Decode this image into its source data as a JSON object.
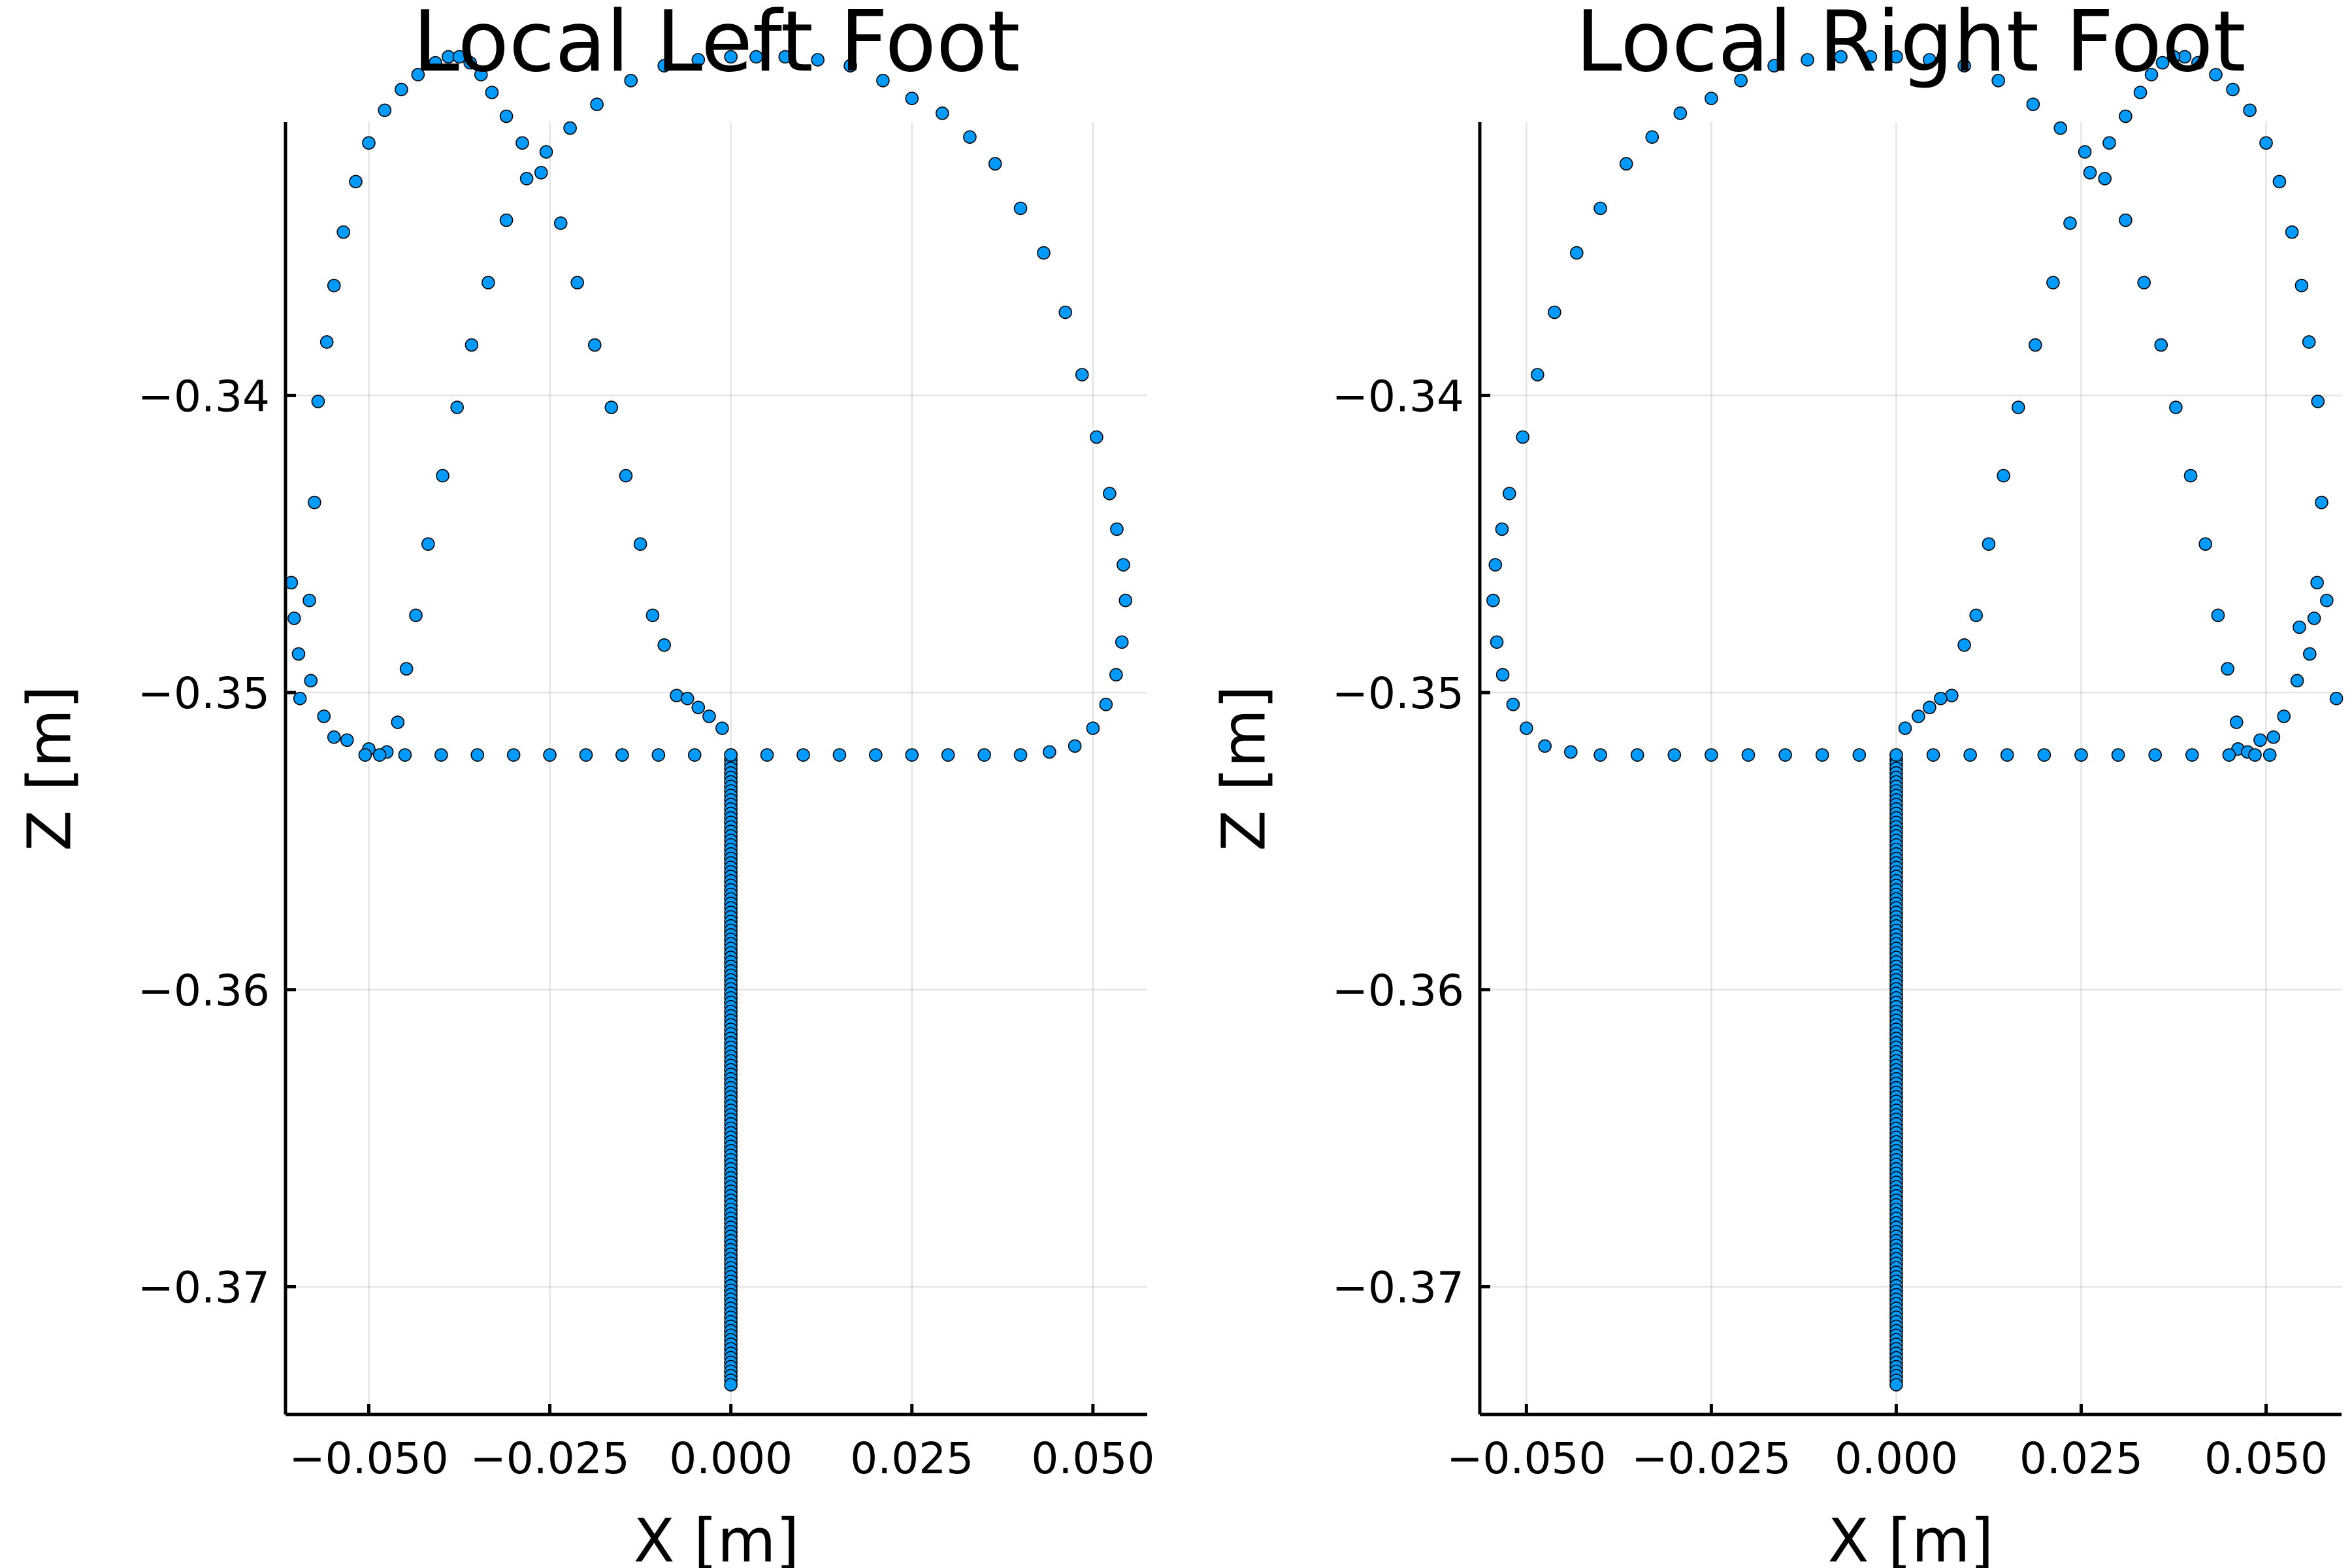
{
  "chart_data": [
    {
      "type": "scatter",
      "title": "Local Left Foot",
      "xlabel": "X [m]",
      "ylabel": "Z [m]",
      "xlim": [
        -0.0615,
        0.0575
      ],
      "ylim": [
        -0.3743,
        -0.3308
      ],
      "xticks": [
        -0.05,
        -0.025,
        0.0,
        0.025,
        0.05
      ],
      "xtick_labels": [
        "−0.050",
        "−0.025",
        "0.000",
        "0.025",
        "0.050"
      ],
      "yticks": [
        -0.34,
        -0.35,
        -0.36,
        -0.37
      ],
      "ytick_labels": [
        "−0.34",
        "−0.35",
        "−0.36",
        "−0.37"
      ],
      "grid": true,
      "legend": "none",
      "marker_color": "#009AFA",
      "series": [
        {
          "values": [
            [
              -0.0595,
              -0.3502
            ],
            [
              -0.0582,
              -0.3469
            ],
            [
              -0.0575,
              -0.3436
            ],
            [
              -0.057,
              -0.3402
            ],
            [
              -0.0558,
              -0.3382
            ],
            [
              -0.0548,
              -0.3363
            ],
            [
              -0.0535,
              -0.3345
            ],
            [
              -0.0518,
              -0.3328
            ],
            [
              -0.05,
              -0.3315
            ],
            [
              -0.0478,
              -0.3304
            ],
            [
              -0.0455,
              -0.3297
            ],
            [
              -0.0432,
              -0.3292
            ],
            [
              -0.0408,
              -0.3288
            ],
            [
              -0.039,
              -0.3286
            ],
            [
              -0.0375,
              -0.3286
            ],
            [
              -0.036,
              -0.3288
            ],
            [
              -0.0345,
              -0.3292
            ],
            [
              -0.033,
              -0.3298
            ],
            [
              -0.031,
              -0.3306
            ],
            [
              -0.0288,
              -0.3315
            ],
            [
              -0.0262,
              -0.3325
            ],
            [
              -0.0235,
              -0.3342
            ],
            [
              -0.0212,
              -0.3362
            ],
            [
              -0.0188,
              -0.3383
            ],
            [
              -0.0165,
              -0.3404
            ],
            [
              -0.0145,
              -0.3427
            ],
            [
              -0.0125,
              -0.345
            ],
            [
              -0.0108,
              -0.3474
            ],
            [
              -0.0092,
              -0.3484
            ],
            [
              -0.0075,
              -0.3501
            ],
            [
              -0.006,
              -0.3502
            ],
            [
              -0.0045,
              -0.3505
            ],
            [
              -0.003,
              -0.3508
            ],
            [
              -0.0012,
              -0.3512
            ],
            [
              0.0,
              -0.3521
            ],
            [
              -0.0607,
              -0.3463
            ],
            [
              -0.0603,
              -0.3475
            ],
            [
              -0.0597,
              -0.3487
            ],
            [
              -0.058,
              -0.3496
            ],
            [
              -0.0562,
              -0.3508
            ],
            [
              -0.0548,
              -0.3515
            ],
            [
              -0.053,
              -0.3516
            ],
            [
              -0.05,
              -0.3519
            ],
            [
              -0.045,
              -0.3521
            ],
            [
              -0.04,
              -0.3521
            ],
            [
              -0.035,
              -0.3521
            ],
            [
              -0.03,
              -0.3521
            ],
            [
              -0.025,
              -0.3521
            ],
            [
              -0.02,
              -0.3521
            ],
            [
              -0.015,
              -0.3521
            ],
            [
              -0.01,
              -0.3521
            ],
            [
              -0.005,
              -0.3521
            ],
            [
              0.0,
              -0.3521
            ],
            [
              0.005,
              -0.3521
            ],
            [
              0.01,
              -0.3521
            ],
            [
              0.015,
              -0.3521
            ],
            [
              0.02,
              -0.3521
            ],
            [
              0.025,
              -0.3521
            ],
            [
              0.03,
              -0.3521
            ],
            [
              0.035,
              -0.3521
            ],
            [
              0.04,
              -0.3521
            ],
            [
              0.044,
              -0.352
            ],
            [
              0.0475,
              -0.3518
            ],
            [
              0.05,
              -0.3512
            ],
            [
              0.0518,
              -0.3504
            ],
            [
              0.0532,
              -0.3494
            ],
            [
              0.054,
              -0.3483
            ],
            [
              0.0545,
              -0.3469
            ],
            [
              0.0542,
              -0.3457
            ],
            [
              0.0533,
              -0.3445
            ],
            [
              0.0523,
              -0.3433
            ],
            [
              0.0505,
              -0.3414
            ],
            [
              0.0485,
              -0.3393
            ],
            [
              0.0462,
              -0.3372
            ],
            [
              0.0432,
              -0.3352
            ],
            [
              0.04,
              -0.3337
            ],
            [
              0.0365,
              -0.3322
            ],
            [
              0.033,
              -0.3313
            ],
            [
              0.0292,
              -0.3305
            ],
            [
              0.025,
              -0.33
            ],
            [
              0.021,
              -0.3294
            ],
            [
              0.0165,
              -0.3289
            ],
            [
              0.012,
              -0.3287
            ],
            [
              0.0075,
              -0.3286
            ],
            [
              0.0035,
              -0.3286
            ],
            [
              0.0,
              -0.3286
            ],
            [
              -0.0045,
              -0.3287
            ],
            [
              -0.0092,
              -0.3289
            ],
            [
              -0.0138,
              -0.3294
            ],
            [
              -0.0185,
              -0.3302
            ],
            [
              -0.0222,
              -0.331
            ],
            [
              -0.0255,
              -0.3318
            ],
            [
              -0.0282,
              -0.3327
            ],
            [
              -0.031,
              -0.3341
            ],
            [
              -0.0335,
              -0.3362
            ],
            [
              -0.0358,
              -0.3383
            ],
            [
              -0.0378,
              -0.3404
            ],
            [
              -0.0398,
              -0.3427
            ],
            [
              -0.0418,
              -0.345
            ],
            [
              -0.0435,
              -0.3474
            ],
            [
              -0.0448,
              -0.3492
            ],
            [
              -0.046,
              -0.351
            ],
            [
              -0.0475,
              -0.352
            ],
            [
              -0.0485,
              -0.3521
            ],
            [
              -0.0505,
              -0.3521
            ]
          ],
          "vertical_segment": {
            "x": 0.0,
            "y_top": -0.3521,
            "y_bottom": -0.3733
          }
        }
      ]
    },
    {
      "type": "scatter",
      "title": "Local Right Foot",
      "xlabel": "X [m]",
      "ylabel": "Z [m]",
      "xlim": [
        -0.0563,
        0.0602
      ],
      "ylim": [
        -0.3743,
        -0.3308
      ],
      "xticks": [
        -0.05,
        -0.025,
        0.0,
        0.025,
        0.05
      ],
      "xtick_labels": [
        "−0.050",
        "−0.025",
        "0.000",
        "0.025",
        "0.050"
      ],
      "yticks": [
        -0.34,
        -0.35,
        -0.36,
        -0.37
      ],
      "ytick_labels": [
        "−0.34",
        "−0.35",
        "−0.36",
        "−0.37"
      ],
      "grid": true,
      "legend": "none",
      "marker_color": "#009AFA",
      "series": [
        {
          "values": [
            [
              0.0595,
              -0.3502
            ],
            [
              0.0582,
              -0.3469
            ],
            [
              0.0575,
              -0.3436
            ],
            [
              0.057,
              -0.3402
            ],
            [
              0.0558,
              -0.3382
            ],
            [
              0.0548,
              -0.3363
            ],
            [
              0.0535,
              -0.3345
            ],
            [
              0.0518,
              -0.3328
            ],
            [
              0.05,
              -0.3315
            ],
            [
              0.0478,
              -0.3304
            ],
            [
              0.0455,
              -0.3297
            ],
            [
              0.0432,
              -0.3292
            ],
            [
              0.0408,
              -0.3288
            ],
            [
              0.039,
              -0.3286
            ],
            [
              0.0375,
              -0.3286
            ],
            [
              0.036,
              -0.3288
            ],
            [
              0.0345,
              -0.3292
            ],
            [
              0.033,
              -0.3298
            ],
            [
              0.031,
              -0.3306
            ],
            [
              0.0288,
              -0.3315
            ],
            [
              0.0262,
              -0.3325
            ],
            [
              0.0235,
              -0.3342
            ],
            [
              0.0212,
              -0.3362
            ],
            [
              0.0188,
              -0.3383
            ],
            [
              0.0165,
              -0.3404
            ],
            [
              0.0145,
              -0.3427
            ],
            [
              0.0125,
              -0.345
            ],
            [
              0.0108,
              -0.3474
            ],
            [
              0.0092,
              -0.3484
            ],
            [
              0.0075,
              -0.3501
            ],
            [
              0.006,
              -0.3502
            ],
            [
              0.0045,
              -0.3505
            ],
            [
              0.003,
              -0.3508
            ],
            [
              0.0012,
              -0.3512
            ],
            [
              0.0,
              -0.3521
            ],
            [
              0.0569,
              -0.3463
            ],
            [
              0.0565,
              -0.3475
            ],
            [
              0.0559,
              -0.3487
            ],
            [
              0.0542,
              -0.3496
            ],
            [
              0.0524,
              -0.3508
            ],
            [
              0.051,
              -0.3515
            ],
            [
              0.0492,
              -0.3516
            ],
            [
              0.0462,
              -0.3519
            ],
            [
              0.045,
              -0.3521
            ],
            [
              0.04,
              -0.3521
            ],
            [
              0.035,
              -0.3521
            ],
            [
              0.03,
              -0.3521
            ],
            [
              0.025,
              -0.3521
            ],
            [
              0.02,
              -0.3521
            ],
            [
              0.015,
              -0.3521
            ],
            [
              0.01,
              -0.3521
            ],
            [
              0.005,
              -0.3521
            ],
            [
              -0.005,
              -0.3521
            ],
            [
              -0.01,
              -0.3521
            ],
            [
              -0.015,
              -0.3521
            ],
            [
              -0.02,
              -0.3521
            ],
            [
              -0.025,
              -0.3521
            ],
            [
              -0.03,
              -0.3521
            ],
            [
              -0.035,
              -0.3521
            ],
            [
              -0.04,
              -0.3521
            ],
            [
              -0.044,
              -0.352
            ],
            [
              -0.0475,
              -0.3518
            ],
            [
              -0.05,
              -0.3512
            ],
            [
              -0.0518,
              -0.3504
            ],
            [
              -0.0532,
              -0.3494
            ],
            [
              -0.054,
              -0.3483
            ],
            [
              -0.0545,
              -0.3469
            ],
            [
              -0.0542,
              -0.3457
            ],
            [
              -0.0533,
              -0.3445
            ],
            [
              -0.0523,
              -0.3433
            ],
            [
              -0.0505,
              -0.3414
            ],
            [
              -0.0485,
              -0.3393
            ],
            [
              -0.0462,
              -0.3372
            ],
            [
              -0.0432,
              -0.3352
            ],
            [
              -0.04,
              -0.3337
            ],
            [
              -0.0365,
              -0.3322
            ],
            [
              -0.033,
              -0.3313
            ],
            [
              -0.0292,
              -0.3305
            ],
            [
              -0.025,
              -0.33
            ],
            [
              -0.021,
              -0.3294
            ],
            [
              -0.0165,
              -0.3289
            ],
            [
              -0.012,
              -0.3287
            ],
            [
              -0.0075,
              -0.3286
            ],
            [
              -0.0035,
              -0.3286
            ],
            [
              0.0,
              -0.3286
            ],
            [
              0.0045,
              -0.3287
            ],
            [
              0.0092,
              -0.3289
            ],
            [
              0.0138,
              -0.3294
            ],
            [
              0.0185,
              -0.3302
            ],
            [
              0.0222,
              -0.331
            ],
            [
              0.0255,
              -0.3318
            ],
            [
              0.0282,
              -0.3327
            ],
            [
              0.031,
              -0.3341
            ],
            [
              0.0335,
              -0.3362
            ],
            [
              0.0358,
              -0.3383
            ],
            [
              0.0378,
              -0.3404
            ],
            [
              0.0398,
              -0.3427
            ],
            [
              0.0418,
              -0.345
            ],
            [
              0.0435,
              -0.3474
            ],
            [
              0.0448,
              -0.3492
            ],
            [
              0.046,
              -0.351
            ],
            [
              0.0475,
              -0.352
            ],
            [
              0.0485,
              -0.3521
            ],
            [
              0.0505,
              -0.3521
            ],
            [
              0.0545,
              -0.3478
            ]
          ],
          "vertical_segment": {
            "x": 0.0,
            "y_top": -0.3521,
            "y_bottom": -0.3733
          }
        }
      ]
    }
  ]
}
